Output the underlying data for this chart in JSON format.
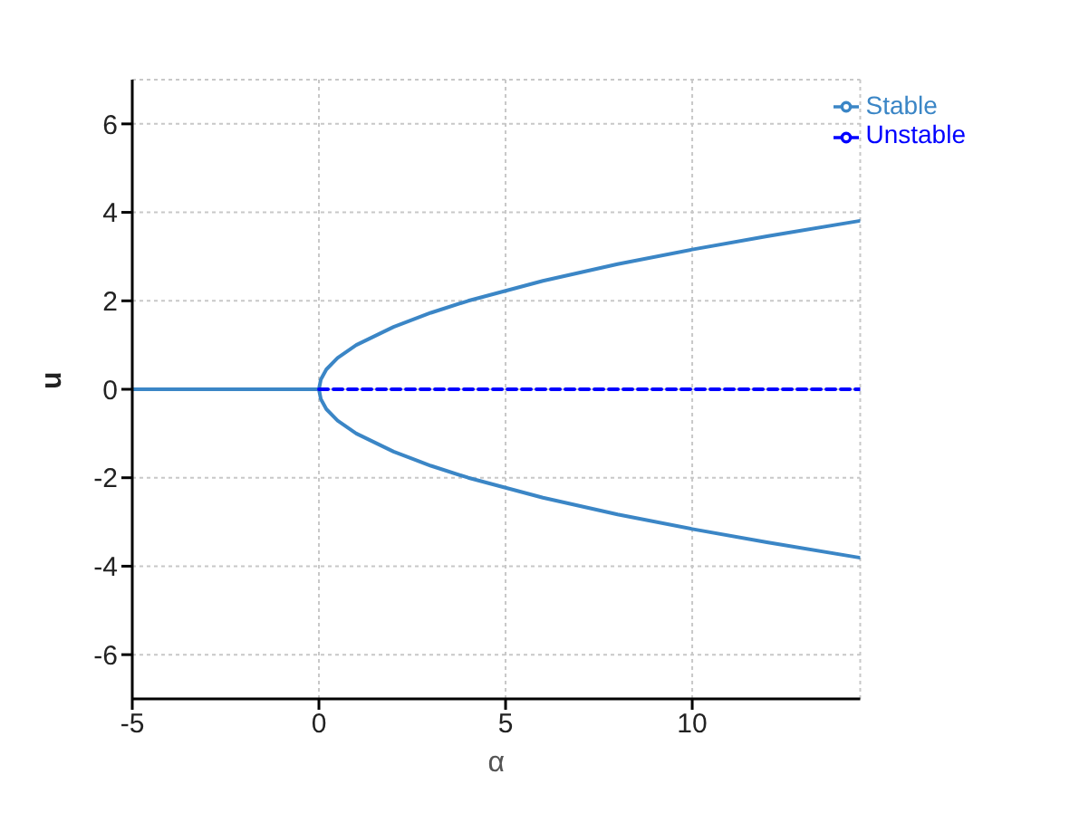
{
  "chart_data": {
    "type": "line",
    "xlabel": "α",
    "ylabel": "u",
    "xlim": [
      -5,
      14.5
    ],
    "ylim": [
      -7,
      7
    ],
    "xticks": [
      -5,
      0,
      5,
      10
    ],
    "yticks": [
      -6,
      -4,
      -2,
      0,
      2,
      4,
      6
    ],
    "grid": true,
    "legend": "top right",
    "marker": "none",
    "series": [
      {
        "name": "Stable",
        "color": "#3b86c6",
        "line_style": "solid",
        "x": [
          -5,
          0,
          0.05,
          0.2,
          0.5,
          1,
          2,
          3,
          4,
          6,
          8,
          10,
          12,
          14.5
        ],
        "values": [
          0,
          0,
          0.22,
          0.45,
          0.71,
          1,
          1.41,
          1.73,
          2,
          2.45,
          2.83,
          3.16,
          3.46,
          3.81
        ]
      },
      {
        "color": "#3b86c6",
        "line_style": "solid",
        "x": [
          0,
          0.05,
          0.2,
          0.5,
          1,
          2,
          3,
          4,
          6,
          8,
          10,
          12,
          14.5
        ],
        "values": [
          0,
          -0.22,
          -0.45,
          -0.71,
          -1,
          -1.41,
          -1.73,
          -2,
          -2.45,
          -2.83,
          -3.16,
          -3.46,
          -3.81
        ]
      },
      {
        "name": "Unstable",
        "color": "#0000ff",
        "line_style": "dashed",
        "x": [
          0,
          14.5
        ],
        "values": [
          0,
          0
        ]
      }
    ]
  }
}
